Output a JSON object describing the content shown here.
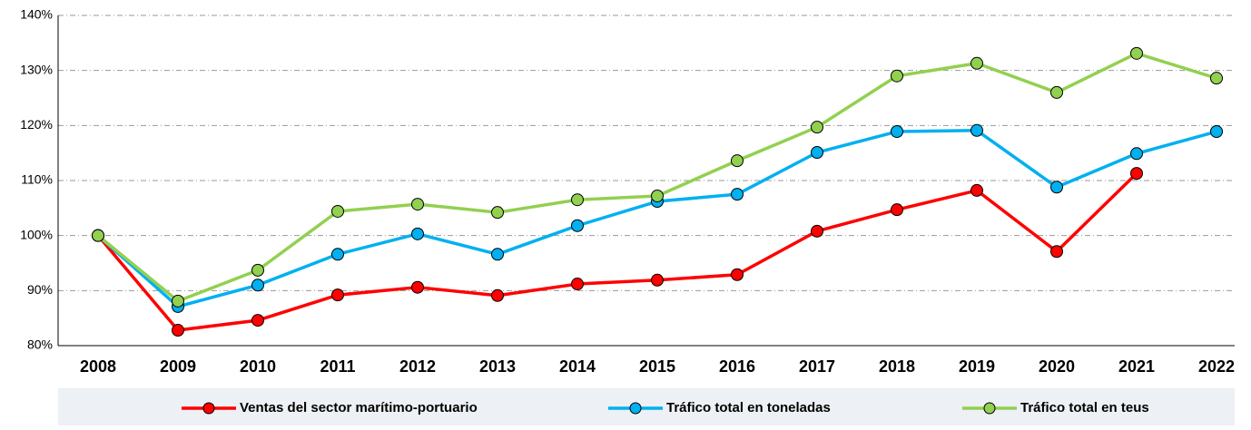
{
  "chart_data": {
    "type": "line",
    "categories": [
      "2008",
      "2009",
      "2010",
      "2011",
      "2012",
      "2013",
      "2014",
      "2015",
      "2016",
      "2017",
      "2018",
      "2019",
      "2020",
      "2021",
      "2022"
    ],
    "series": [
      {
        "name": "Ventas del sector marítimo-portuario",
        "color": "#ff0000",
        "values": [
          100,
          82.8,
          84.6,
          89.2,
          90.6,
          89.1,
          91.2,
          91.9,
          92.9,
          100.8,
          104.7,
          108.2,
          97.1,
          111.3,
          null
        ]
      },
      {
        "name": "Tráfico total en toneladas",
        "color": "#00b0f0",
        "values": [
          100,
          87.1,
          91.0,
          96.6,
          100.3,
          96.6,
          101.8,
          106.2,
          107.5,
          115.1,
          118.9,
          119.1,
          108.8,
          114.9,
          118.9
        ]
      },
      {
        "name": "Tráfico total en teus",
        "color": "#92d050",
        "values": [
          100,
          88.1,
          93.7,
          104.4,
          105.7,
          104.2,
          106.5,
          107.2,
          113.6,
          119.7,
          129.0,
          131.3,
          126.0,
          133.1,
          128.6
        ]
      }
    ],
    "ylim": [
      80,
      140
    ],
    "yticks": [
      {
        "value": 80,
        "label": "80%"
      },
      {
        "value": 90,
        "label": "90%"
      },
      {
        "value": 100,
        "label": "100%"
      },
      {
        "value": 110,
        "label": "110%"
      },
      {
        "value": 120,
        "label": "120%"
      },
      {
        "value": 130,
        "label": "130%"
      },
      {
        "value": 140,
        "label": "140%"
      }
    ],
    "grid": true,
    "legend": "bottom"
  }
}
